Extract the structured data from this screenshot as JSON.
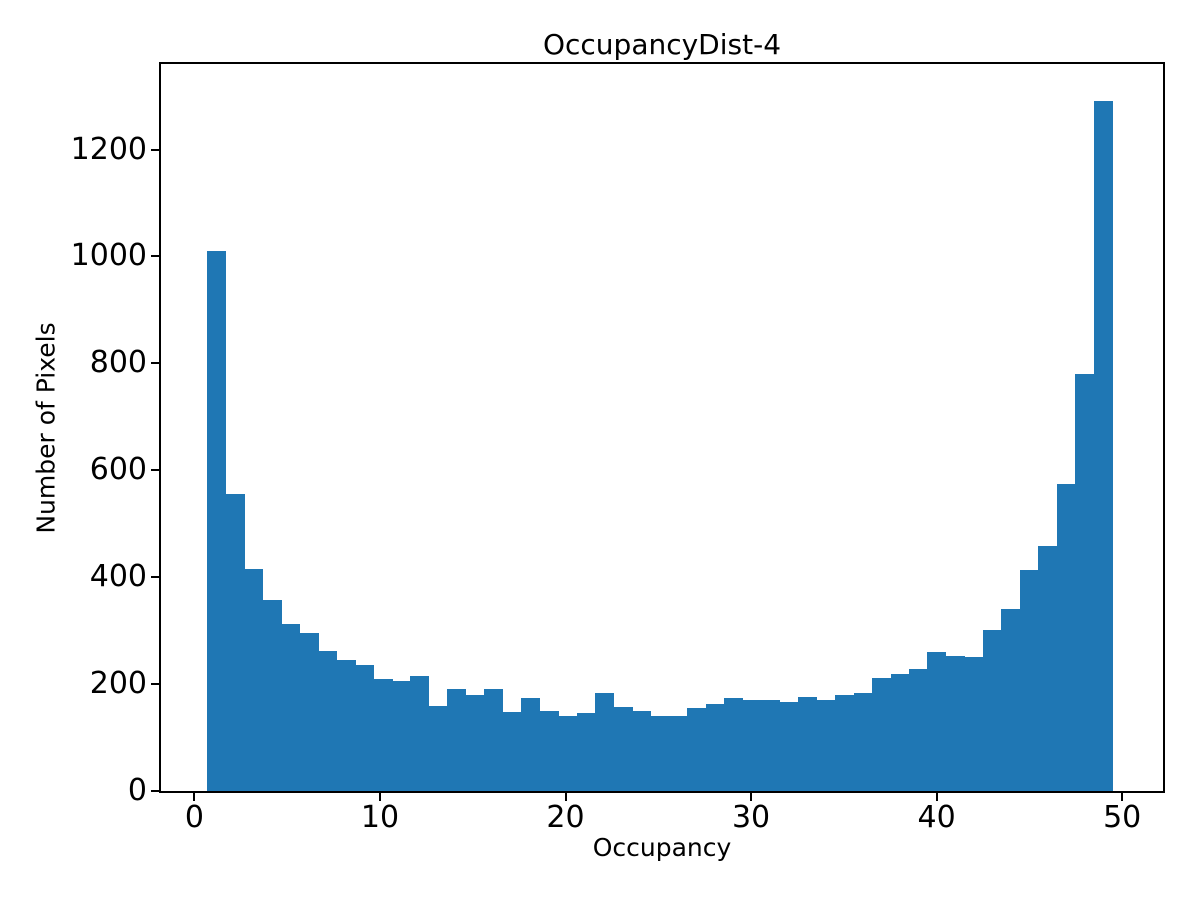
{
  "chart_data": {
    "type": "bar",
    "title": "OccupancyDist-4",
    "xlabel": "Occupancy",
    "ylabel": "Number of Pixels",
    "xlim": [
      -1.8,
      52.2
    ],
    "ylim": [
      0,
      1360
    ],
    "xticks": [
      0,
      10,
      20,
      30,
      40,
      50
    ],
    "yticks": [
      0,
      200,
      400,
      600,
      800,
      1000,
      1200
    ],
    "grid": false,
    "legend": "none",
    "bar_color": "#1f77b4",
    "bin_start": 0.7,
    "bin_width": 0.995,
    "values": [
      1010,
      555,
      415,
      358,
      313,
      295,
      261,
      246,
      235,
      210,
      205,
      215,
      159,
      190,
      179,
      190,
      148,
      174,
      149,
      140,
      146,
      183,
      157,
      149,
      140,
      141,
      155,
      163,
      174,
      170,
      170,
      166,
      176,
      171,
      180,
      184,
      211,
      218,
      228,
      260,
      253,
      250,
      302,
      340,
      413,
      458,
      575,
      780,
      1290
    ]
  }
}
